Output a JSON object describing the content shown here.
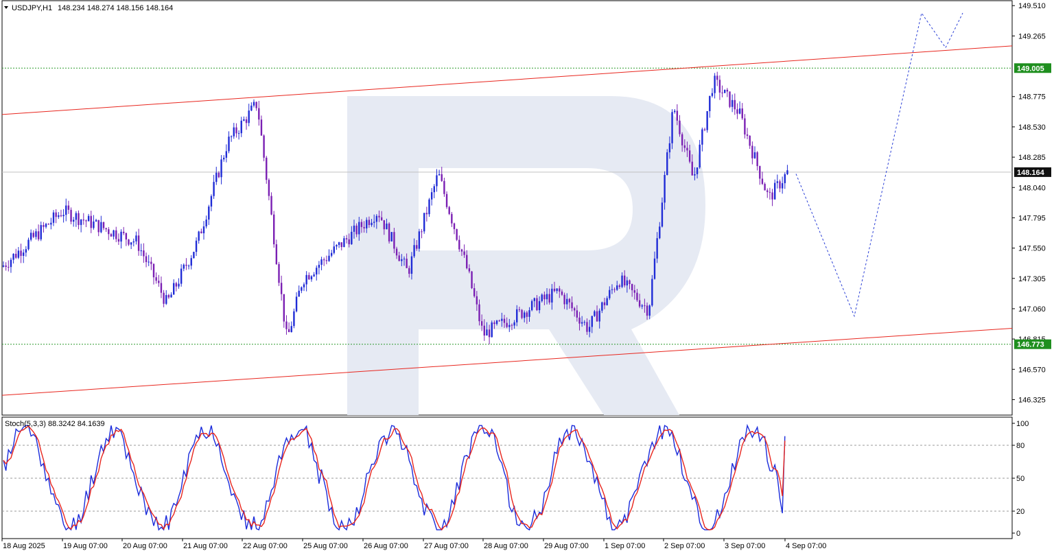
{
  "header": {
    "symbol": "USDJPY,H1",
    "ohlc": "148.234 148.274 148.156 148.164"
  },
  "indicator": {
    "label": "Stoch(5,3,3) 88.3242 84.1639",
    "levels": [
      "100",
      "80",
      "50",
      "20",
      "0"
    ]
  },
  "price_axis": {
    "ticks": [
      "149.510",
      "149.265",
      "148.775",
      "148.530",
      "148.285",
      "148.040",
      "147.795",
      "147.550",
      "147.305",
      "147.060",
      "146.815",
      "146.570",
      "146.325"
    ]
  },
  "time_axis": {
    "labels": [
      "18 Aug 2025",
      "19 Aug 07:00",
      "20 Aug 07:00",
      "21 Aug 07:00",
      "22 Aug 07:00",
      "25 Aug 07:00",
      "26 Aug 07:00",
      "27 Aug 07:00",
      "28 Aug 07:00",
      "29 Aug 07:00",
      "1 Sep 07:00",
      "2 Sep 07:00",
      "3 Sep 07:00",
      "4 Sep 07:00"
    ]
  },
  "badges": {
    "resistance": "149.005",
    "support": "146.773",
    "current": "148.164"
  },
  "chart_data": {
    "type": "candlestick",
    "symbol": "USDJPY",
    "timeframe": "H1",
    "ylim": [
      146.2,
      149.55
    ],
    "current_price": 148.164,
    "horizontal_levels": [
      149.005,
      146.773
    ],
    "channel": {
      "upper": [
        {
          "x": "18 Aug 2025",
          "y": 148.63
        },
        {
          "x": "4 Sep 07:00",
          "y": 149.06
        }
      ],
      "lower": [
        {
          "x": "18 Aug 2025",
          "y": 146.36
        },
        {
          "x": "4 Sep 07:00",
          "y": 146.78
        }
      ]
    },
    "forecast_path": [
      {
        "x": "4 Sep 07:00",
        "y": 148.15
      },
      {
        "x": "after 4 Sep",
        "y": 147.0
      },
      {
        "x": "after 4 Sep",
        "y": 149.45
      },
      {
        "x": "after 4 Sep",
        "y": 149.17
      },
      {
        "x": "after 4 Sep",
        "y": 149.45
      }
    ],
    "price_path": [
      {
        "x": "18 Aug 2025",
        "y": 147.4
      },
      {
        "x": "19 Aug 07:00",
        "y": 147.85
      },
      {
        "x": "20 Aug 07:00",
        "y": 147.6
      },
      {
        "x": "20 Aug 07:00",
        "y": 147.1
      },
      {
        "x": "21 Aug 07:00",
        "y": 147.6
      },
      {
        "x": "21 Aug 07:00",
        "y": 148.4
      },
      {
        "x": "22 Aug 07:00",
        "y": 148.72
      },
      {
        "x": "22 Aug 07:00",
        "y": 146.8
      },
      {
        "x": "25 Aug 07:00",
        "y": 147.3
      },
      {
        "x": "26 Aug 07:00",
        "y": 147.85
      },
      {
        "x": "26 Aug 07:00",
        "y": 147.35
      },
      {
        "x": "27 Aug 07:00",
        "y": 148.15
      },
      {
        "x": "27 Aug 07:00",
        "y": 147.35
      },
      {
        "x": "28 Aug 07:00",
        "y": 146.85
      },
      {
        "x": "29 Aug 07:00",
        "y": 147.2
      },
      {
        "x": "29 Aug 07:00",
        "y": 146.9
      },
      {
        "x": "1 Sep 07:00",
        "y": 147.3
      },
      {
        "x": "1 Sep 07:00",
        "y": 147.05
      },
      {
        "x": "2 Sep 07:00",
        "y": 148.7
      },
      {
        "x": "2 Sep 07:00",
        "y": 148.1
      },
      {
        "x": "2 Sep 07:00",
        "y": 148.9
      },
      {
        "x": "3 Sep 07:00",
        "y": 148.65
      },
      {
        "x": "3 Sep 07:00",
        "y": 147.95
      },
      {
        "x": "4 Sep 07:00",
        "y": 148.164
      }
    ],
    "stochastic": {
      "name": "Stoch(5,3,3)",
      "main": 88.3242,
      "signal": 84.1639,
      "levels": [
        80,
        50,
        20
      ],
      "ylim": [
        0,
        100
      ]
    },
    "colors": {
      "bull": "#1f2bd6",
      "bear": "#7a1fb3",
      "channel": "#e8251d",
      "level": "#2e9a2e",
      "forecast": "#2a3fd6",
      "stoch_main": "#1a2bdb",
      "stoch_signal": "#e8251d",
      "badge_green": "#1f8f1f",
      "badge_dark": "#111111"
    }
  }
}
